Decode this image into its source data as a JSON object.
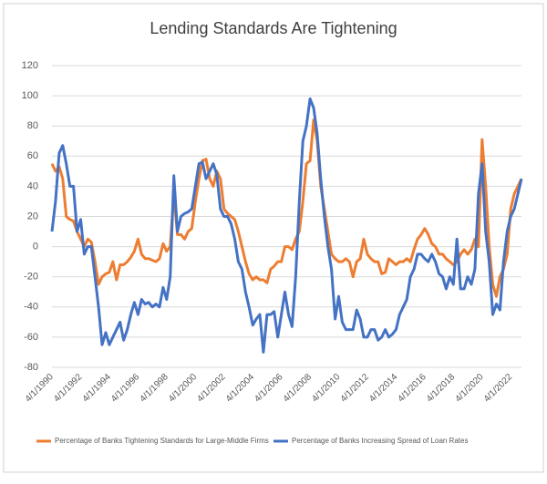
{
  "chart_data": {
    "type": "line",
    "title": "Lending Standards Are Tightening",
    "categories": [
      "4/1/1990",
      null,
      null,
      null,
      null,
      null,
      null,
      null,
      "4/1/1992",
      null,
      null,
      null,
      null,
      null,
      null,
      null,
      "4/1/1994",
      null,
      null,
      null,
      null,
      null,
      null,
      null,
      "4/1/1996",
      null,
      null,
      null,
      null,
      null,
      null,
      null,
      "4/1/1998",
      null,
      null,
      null,
      null,
      null,
      null,
      null,
      "4/1/2000",
      null,
      null,
      null,
      null,
      null,
      null,
      null,
      "4/1/2002",
      null,
      null,
      null,
      null,
      null,
      null,
      null,
      "4/1/2004",
      null,
      null,
      null,
      null,
      null,
      null,
      null,
      "4/1/2006",
      null,
      null,
      null,
      null,
      null,
      null,
      null,
      "4/1/2008",
      null,
      null,
      null,
      null,
      null,
      null,
      null,
      "4/1/2010",
      null,
      null,
      null,
      null,
      null,
      null,
      null,
      "4/1/2012",
      null,
      null,
      null,
      null,
      null,
      null,
      null,
      "4/1/2014",
      null,
      null,
      null,
      null,
      null,
      null,
      null,
      "4/1/2016",
      null,
      null,
      null,
      null,
      null,
      null,
      null,
      "4/1/2018",
      null,
      null,
      null,
      null,
      null,
      null,
      null,
      "4/1/2020",
      null,
      null,
      null,
      null,
      null,
      null,
      null,
      "4/1/2022",
      null,
      null,
      null
    ],
    "series": [
      {
        "name": "Percentage of Banks Tightening Standards for Large-Middle Firms",
        "color": "#ed7d31",
        "values": [
          55,
          50,
          53,
          45,
          20,
          18,
          17,
          10,
          5,
          0,
          5,
          3,
          -10,
          -25,
          -20,
          -18,
          -17,
          -10,
          -22,
          -12,
          -12,
          -10,
          -7,
          -3,
          5,
          -5,
          -8,
          -8,
          -9,
          -10,
          -8,
          2,
          -3,
          0,
          35,
          8,
          8,
          5,
          10,
          12,
          30,
          45,
          57,
          58,
          45,
          40,
          50,
          45,
          25,
          22,
          20,
          18,
          10,
          0,
          -10,
          -18,
          -22,
          -20,
          -22,
          -22,
          -24,
          -15,
          -13,
          -10,
          -10,
          0,
          0,
          -2,
          5,
          10,
          30,
          55,
          57,
          84,
          70,
          40,
          25,
          10,
          -5,
          -8,
          -10,
          -10,
          -8,
          -10,
          -20,
          -10,
          -8,
          5,
          -5,
          -8,
          -10,
          -10,
          -18,
          -17,
          -8,
          -10,
          -12,
          -10,
          -10,
          -8,
          -10,
          -2,
          5,
          8,
          12,
          8,
          2,
          0,
          -5,
          -5,
          -8,
          -10,
          -12,
          -10,
          -5,
          -2,
          -5,
          -2,
          5,
          0,
          71,
          40,
          0,
          -25,
          -33,
          -20,
          -15,
          -5,
          25,
          35,
          40,
          45
        ]
      },
      {
        "name": "Percentage of Banks Increasing Spread of Loan Rates",
        "color": "#4472c4",
        "values": [
          10,
          30,
          62,
          67,
          55,
          40,
          40,
          10,
          18,
          -5,
          0,
          0,
          -20,
          -40,
          -65,
          -57,
          -65,
          -60,
          -55,
          -50,
          -62,
          -55,
          -45,
          -37,
          -45,
          -35,
          -38,
          -37,
          -40,
          -38,
          -40,
          -27,
          -35,
          -20,
          47,
          10,
          20,
          22,
          23,
          25,
          40,
          55,
          56,
          45,
          50,
          55,
          48,
          25,
          20,
          20,
          15,
          5,
          -10,
          -15,
          -30,
          -40,
          -52,
          -48,
          -45,
          -70,
          -45,
          -45,
          -43,
          -60,
          -45,
          -30,
          -45,
          -53,
          -20,
          30,
          70,
          80,
          98,
          92,
          75,
          45,
          20,
          0,
          -15,
          -48,
          -33,
          -50,
          -55,
          -55,
          -55,
          -42,
          -48,
          -60,
          -60,
          -55,
          -55,
          -62,
          -60,
          -55,
          -60,
          -58,
          -55,
          -45,
          -40,
          -35,
          -20,
          -15,
          -5,
          -5,
          -8,
          -10,
          -5,
          -10,
          -18,
          -20,
          -28,
          -20,
          -25,
          5,
          -28,
          -28,
          -20,
          -25,
          -15,
          35,
          55,
          10,
          -10,
          -45,
          -38,
          -42,
          -10,
          10,
          20,
          25,
          35,
          45
        ]
      }
    ],
    "ylim": [
      -80,
      120
    ],
    "yticks": [
      -80,
      -60,
      -40,
      -20,
      0,
      20,
      40,
      60,
      80,
      100,
      120
    ],
    "grid": true
  }
}
